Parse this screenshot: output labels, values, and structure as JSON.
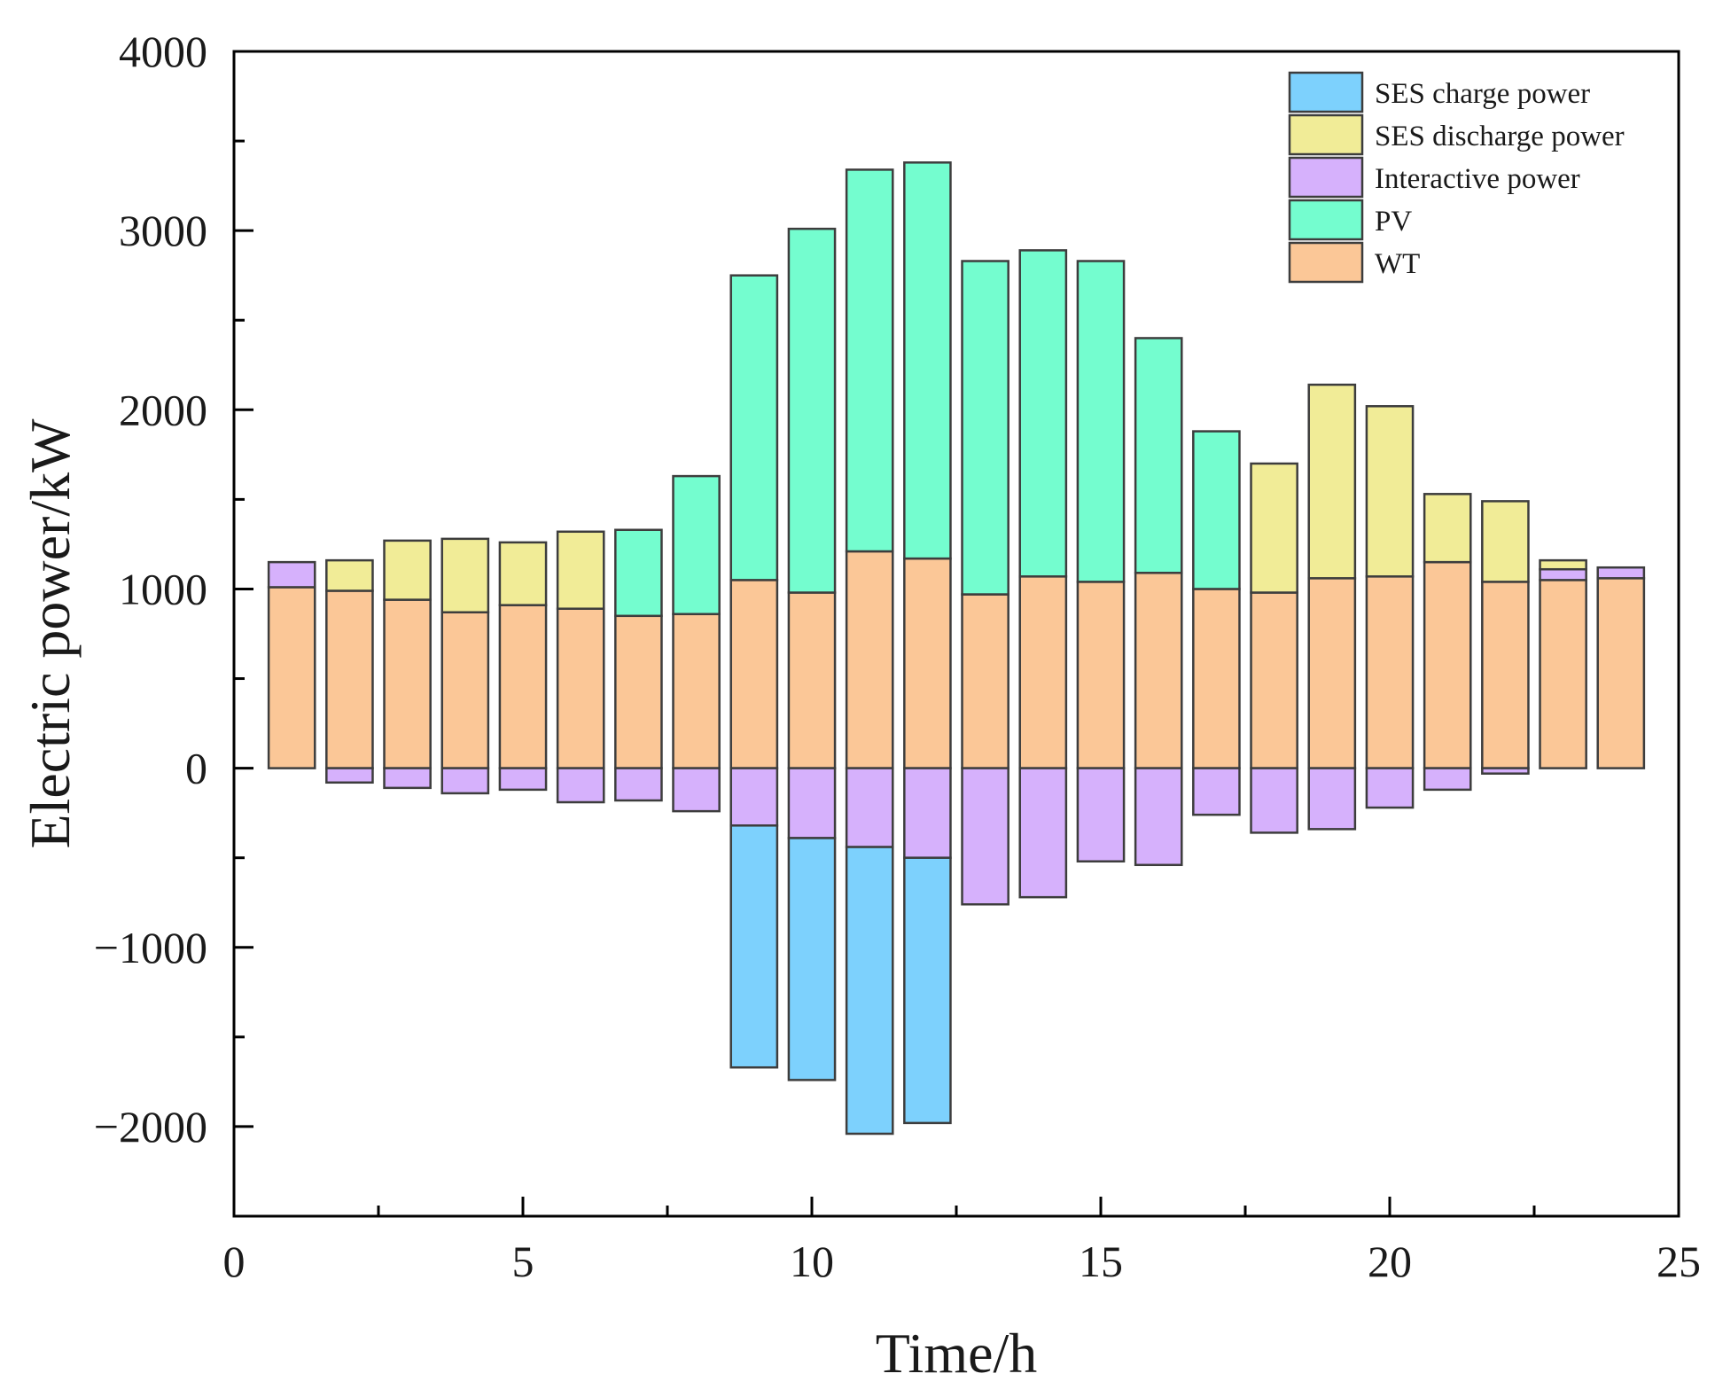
{
  "chart_data": {
    "type": "bar",
    "stacked": true,
    "title": "",
    "xlabel": "Time/h",
    "ylabel": "Electric power/kW",
    "xlim": [
      0,
      25
    ],
    "ylim": [
      -2500,
      4000
    ],
    "x_ticks": [
      0,
      5,
      10,
      15,
      20,
      25
    ],
    "y_ticks": [
      -2000,
      -1000,
      0,
      1000,
      2000,
      3000,
      4000
    ],
    "x_tick_labels": [
      "0",
      "5",
      "10",
      "15",
      "20",
      "25"
    ],
    "y_tick_labels": [
      "−2000",
      "−1000",
      "0",
      "1000",
      "2000",
      "3000",
      "4000"
    ],
    "legend_position": "top-right",
    "x": [
      1,
      2,
      3,
      4,
      5,
      6,
      7,
      8,
      9,
      10,
      11,
      12,
      13,
      14,
      15,
      16,
      17,
      18,
      19,
      20,
      21,
      22,
      23,
      24
    ],
    "series": [
      {
        "name": "WT",
        "color": "#fbc797",
        "values": [
          1010,
          990,
          940,
          870,
          910,
          890,
          850,
          860,
          1050,
          980,
          1210,
          1170,
          970,
          1070,
          1040,
          1090,
          1000,
          980,
          1060,
          1070,
          1150,
          1040,
          1050,
          1060
        ]
      },
      {
        "name": "PV",
        "color": "#74fdcf",
        "values": [
          0,
          0,
          0,
          0,
          0,
          0,
          480,
          770,
          1700,
          2030,
          2130,
          2210,
          1860,
          1820,
          1790,
          1310,
          880,
          0,
          0,
          0,
          0,
          0,
          0,
          0
        ]
      },
      {
        "name": "Interactive power",
        "color": "#d6b1fc",
        "values": [
          140,
          -80,
          -110,
          -140,
          -120,
          -190,
          -180,
          -240,
          -320,
          -390,
          -440,
          -500,
          -760,
          -720,
          -520,
          -540,
          -260,
          -360,
          -340,
          -220,
          -120,
          -30,
          60,
          60
        ]
      },
      {
        "name": "SES discharge power",
        "color": "#f1ec97",
        "values": [
          0,
          170,
          330,
          410,
          350,
          430,
          0,
          0,
          0,
          0,
          0,
          0,
          0,
          0,
          0,
          0,
          0,
          720,
          1080,
          950,
          380,
          450,
          50,
          0
        ]
      },
      {
        "name": "SES charge power",
        "color": "#7dd1fd",
        "values": [
          0,
          0,
          0,
          0,
          0,
          0,
          0,
          0,
          -1350,
          -1350,
          -1600,
          -1480,
          0,
          0,
          0,
          0,
          0,
          0,
          0,
          0,
          0,
          0,
          0,
          0
        ]
      }
    ],
    "legend_entries": [
      "SES charge power",
      "SES discharge power",
      "Interactive power",
      "PV",
      "WT"
    ]
  }
}
